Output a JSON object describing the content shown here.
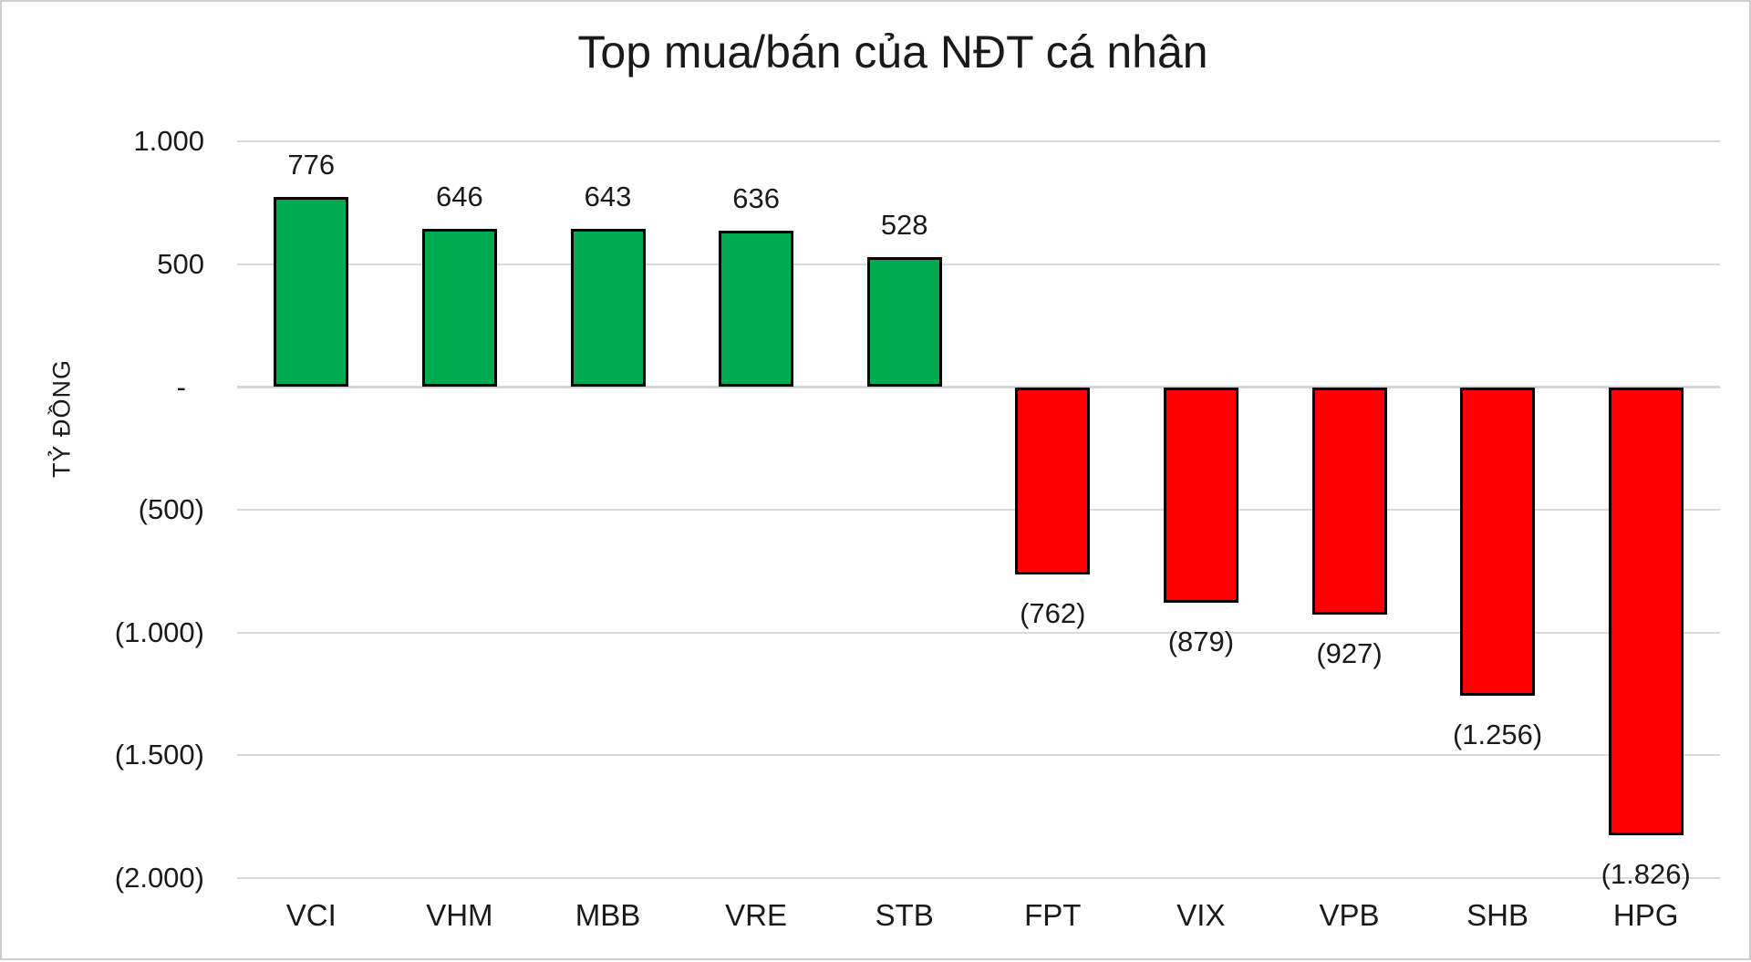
{
  "chart_data": {
    "type": "bar",
    "title": "Top mua/bán của NĐT cá nhân",
    "ylabel": "TỶ ĐỒNG",
    "xlabel": "",
    "categories": [
      "VCI",
      "VHM",
      "MBB",
      "VRE",
      "STB",
      "FPT",
      "VIX",
      "VPB",
      "SHB",
      "HPG"
    ],
    "values": [
      776,
      646,
      643,
      636,
      528,
      -762,
      -879,
      -927,
      -1256,
      -1826
    ],
    "data_labels": [
      "776",
      "646",
      "643",
      "636",
      "528",
      "(762)",
      "(879)",
      "(927)",
      "(1.256)",
      "(1.826)"
    ],
    "ylim": [
      -2000,
      1000
    ],
    "yticks": [
      {
        "value": 1000,
        "label": "1.000"
      },
      {
        "value": 500,
        "label": "500"
      },
      {
        "value": 0,
        "label": "-"
      },
      {
        "value": -500,
        "label": "(500)"
      },
      {
        "value": -1000,
        "label": "(1.000)"
      },
      {
        "value": -1500,
        "label": "(1.500)"
      },
      {
        "value": -2000,
        "label": "(2.000)"
      }
    ],
    "grid": true,
    "legend": "none",
    "positive_color": "#00AB50",
    "negative_color": "#FF0000",
    "bar_border_color": "#000000",
    "gridline_color": "#D9D9D9",
    "text_color": "#1A1A1A"
  }
}
